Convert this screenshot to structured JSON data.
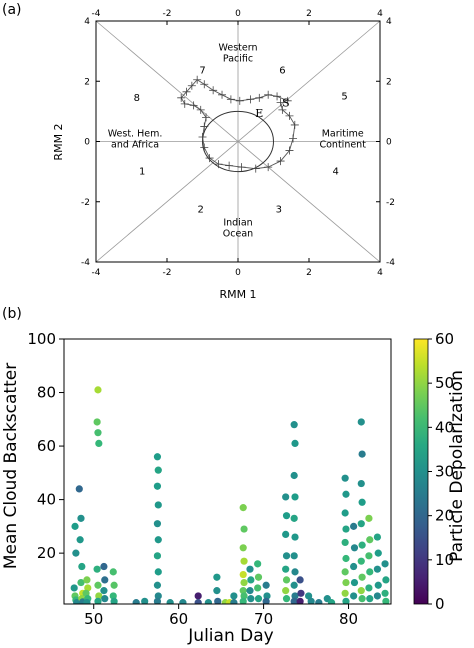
{
  "chart_data": [
    {
      "panel_label": "(a)",
      "type": "line",
      "xlabel": "RMM 1",
      "ylabel": "RMM 2",
      "xlim": [
        -4,
        4
      ],
      "ylim": [
        -4,
        4
      ],
      "xticks": [
        -4,
        -2,
        0,
        2,
        4
      ],
      "yticks": [
        -4,
        -2,
        0,
        2,
        4
      ],
      "phase_numbers": [
        {
          "label": "1",
          "x": -2.7,
          "y": -1.0
        },
        {
          "label": "2",
          "x": -1.05,
          "y": -2.25
        },
        {
          "label": "3",
          "x": 1.15,
          "y": -2.25
        },
        {
          "label": "4",
          "x": 2.75,
          "y": -1.0
        },
        {
          "label": "5",
          "x": 3.0,
          "y": 1.5
        },
        {
          "label": "6",
          "x": 1.25,
          "y": 2.35
        },
        {
          "label": "7",
          "x": -1.0,
          "y": 2.35
        },
        {
          "label": "8",
          "x": -2.85,
          "y": 1.45
        }
      ],
      "regions": [
        {
          "lines": [
            "Western",
            "Pacific"
          ],
          "x": 0.0,
          "y": 2.95
        },
        {
          "lines": [
            "West. Hem.",
            "and Africa"
          ],
          "x": -2.9,
          "y": 0.1
        },
        {
          "lines": [
            "Maritime",
            "Continent"
          ],
          "x": 2.95,
          "y": 0.1
        },
        {
          "lines": [
            "Indian",
            "Ocean"
          ],
          "x": 0.0,
          "y": -2.85
        }
      ],
      "markers": [
        {
          "label": "E",
          "x": 0.6,
          "y": 0.95
        },
        {
          "label": "S",
          "x": 1.35,
          "y": 1.3
        }
      ],
      "circle_radius": 1.0,
      "trajectory": [
        {
          "x": 1.4,
          "y": 1.35
        },
        {
          "x": 1.1,
          "y": 1.5
        },
        {
          "x": 0.85,
          "y": 1.55
        },
        {
          "x": 0.6,
          "y": 1.45
        },
        {
          "x": 0.35,
          "y": 1.4
        },
        {
          "x": 0.05,
          "y": 1.35
        },
        {
          "x": -0.2,
          "y": 1.4
        },
        {
          "x": -0.45,
          "y": 1.55
        },
        {
          "x": -0.7,
          "y": 1.7
        },
        {
          "x": -0.95,
          "y": 1.9
        },
        {
          "x": -1.15,
          "y": 2.05
        },
        {
          "x": -1.3,
          "y": 1.85
        },
        {
          "x": -1.45,
          "y": 1.65
        },
        {
          "x": -1.6,
          "y": 1.45
        },
        {
          "x": -1.5,
          "y": 1.25
        },
        {
          "x": -1.25,
          "y": 1.2
        },
        {
          "x": -1.05,
          "y": 1.05
        },
        {
          "x": -0.9,
          "y": 0.8
        },
        {
          "x": -0.95,
          "y": 0.5
        },
        {
          "x": -1.0,
          "y": 0.15
        },
        {
          "x": -0.95,
          "y": -0.2
        },
        {
          "x": -0.8,
          "y": -0.55
        },
        {
          "x": -0.55,
          "y": -0.75
        },
        {
          "x": -0.25,
          "y": -0.8
        },
        {
          "x": 0.1,
          "y": -0.85
        },
        {
          "x": 0.5,
          "y": -0.9
        },
        {
          "x": 0.85,
          "y": -0.85
        },
        {
          "x": 1.2,
          "y": -0.65
        },
        {
          "x": 1.45,
          "y": -0.3
        },
        {
          "x": 1.55,
          "y": 0.1
        },
        {
          "x": 1.6,
          "y": 0.55
        },
        {
          "x": 1.45,
          "y": 0.85
        },
        {
          "x": 1.25,
          "y": 1.05
        },
        {
          "x": 1.2,
          "y": 1.3
        }
      ]
    },
    {
      "panel_label": "(b)",
      "type": "scatter",
      "xlabel": "Julian Day",
      "ylabel": "Mean Cloud Backscatter",
      "xlim": [
        46.5,
        85
      ],
      "ylim": [
        1,
        100
      ],
      "xticks": [
        50,
        60,
        70,
        80
      ],
      "yticks": [
        20,
        40,
        60,
        80,
        100
      ],
      "colorbar": {
        "label": "Particle Depolarization",
        "min": 0,
        "max": 60,
        "ticks": [
          0,
          10,
          20,
          30,
          40,
          50,
          60
        ],
        "colormap": "viridis"
      },
      "points": [
        {
          "x": 47.8,
          "y": 30,
          "c": 33
        },
        {
          "x": 47.9,
          "y": 20,
          "c": 30
        },
        {
          "x": 47.7,
          "y": 7,
          "c": 32
        },
        {
          "x": 47.8,
          "y": 4,
          "c": 45
        },
        {
          "x": 47.9,
          "y": 2.5,
          "c": 40
        },
        {
          "x": 48.0,
          "y": 1.5,
          "c": 28
        },
        {
          "x": 48.3,
          "y": 44,
          "c": 20
        },
        {
          "x": 48.5,
          "y": 33,
          "c": 30
        },
        {
          "x": 48.4,
          "y": 25,
          "c": 32
        },
        {
          "x": 48.6,
          "y": 15,
          "c": 35
        },
        {
          "x": 48.5,
          "y": 9,
          "c": 42
        },
        {
          "x": 48.7,
          "y": 5,
          "c": 55
        },
        {
          "x": 48.6,
          "y": 3,
          "c": 50
        },
        {
          "x": 48.7,
          "y": 1.8,
          "c": 25
        },
        {
          "x": 49.2,
          "y": 10,
          "c": 48
        },
        {
          "x": 49.3,
          "y": 7,
          "c": 52
        },
        {
          "x": 49.1,
          "y": 5,
          "c": 45
        },
        {
          "x": 49.3,
          "y": 3,
          "c": 40
        },
        {
          "x": 49.2,
          "y": 1.5,
          "c": 30
        },
        {
          "x": 50.5,
          "y": 81,
          "c": 52
        },
        {
          "x": 50.4,
          "y": 69,
          "c": 45
        },
        {
          "x": 50.5,
          "y": 65,
          "c": 42
        },
        {
          "x": 50.6,
          "y": 61,
          "c": 40
        },
        {
          "x": 50.4,
          "y": 14,
          "c": 38
        },
        {
          "x": 50.5,
          "y": 8,
          "c": 45
        },
        {
          "x": 50.6,
          "y": 4,
          "c": 50
        },
        {
          "x": 50.5,
          "y": 2,
          "c": 35
        },
        {
          "x": 51.2,
          "y": 15,
          "c": 20
        },
        {
          "x": 51.3,
          "y": 10,
          "c": 22
        },
        {
          "x": 51.2,
          "y": 6,
          "c": 30
        },
        {
          "x": 51.3,
          "y": 3,
          "c": 28
        },
        {
          "x": 52.3,
          "y": 13,
          "c": 42
        },
        {
          "x": 52.4,
          "y": 8,
          "c": 44
        },
        {
          "x": 52.3,
          "y": 4,
          "c": 40
        },
        {
          "x": 52.4,
          "y": 2,
          "c": 35
        },
        {
          "x": 55.0,
          "y": 1.5,
          "c": 25
        },
        {
          "x": 56.0,
          "y": 2,
          "c": 30
        },
        {
          "x": 57.5,
          "y": 56,
          "c": 33
        },
        {
          "x": 57.6,
          "y": 51,
          "c": 35
        },
        {
          "x": 57.5,
          "y": 45,
          "c": 33
        },
        {
          "x": 57.6,
          "y": 38,
          "c": 32
        },
        {
          "x": 57.5,
          "y": 31,
          "c": 30
        },
        {
          "x": 57.6,
          "y": 25,
          "c": 32
        },
        {
          "x": 57.5,
          "y": 19,
          "c": 35
        },
        {
          "x": 57.6,
          "y": 13,
          "c": 33
        },
        {
          "x": 57.5,
          "y": 8,
          "c": 30
        },
        {
          "x": 57.6,
          "y": 4,
          "c": 28
        },
        {
          "x": 57.5,
          "y": 2,
          "c": 25
        },
        {
          "x": 59.0,
          "y": 1.5,
          "c": 30
        },
        {
          "x": 60.5,
          "y": 1.5,
          "c": 28
        },
        {
          "x": 62.3,
          "y": 4,
          "c": 5
        },
        {
          "x": 62.3,
          "y": 1.5,
          "c": 15
        },
        {
          "x": 63.5,
          "y": 1.5,
          "c": 30
        },
        {
          "x": 64.5,
          "y": 6,
          "c": 30
        },
        {
          "x": 64.5,
          "y": 11,
          "c": 32
        },
        {
          "x": 64.6,
          "y": 2,
          "c": 20
        },
        {
          "x": 65.5,
          "y": 1.5,
          "c": 50
        },
        {
          "x": 66.0,
          "y": 1.5,
          "c": 55
        },
        {
          "x": 66.5,
          "y": 4,
          "c": 30
        },
        {
          "x": 66.5,
          "y": 1.5,
          "c": 25
        },
        {
          "x": 67.6,
          "y": 37,
          "c": 48
        },
        {
          "x": 67.7,
          "y": 29,
          "c": 45
        },
        {
          "x": 67.6,
          "y": 22,
          "c": 48
        },
        {
          "x": 67.7,
          "y": 17,
          "c": 52
        },
        {
          "x": 67.6,
          "y": 12,
          "c": 55
        },
        {
          "x": 67.7,
          "y": 9,
          "c": 50
        },
        {
          "x": 67.6,
          "y": 6,
          "c": 45
        },
        {
          "x": 67.7,
          "y": 4,
          "c": 42
        },
        {
          "x": 67.6,
          "y": 2,
          "c": 40
        },
        {
          "x": 68.4,
          "y": 14,
          "c": 30
        },
        {
          "x": 68.5,
          "y": 10,
          "c": 35
        },
        {
          "x": 68.4,
          "y": 6,
          "c": 28
        },
        {
          "x": 68.5,
          "y": 3,
          "c": 30
        },
        {
          "x": 69.3,
          "y": 16,
          "c": 40
        },
        {
          "x": 69.4,
          "y": 11,
          "c": 45
        },
        {
          "x": 69.3,
          "y": 7,
          "c": 42
        },
        {
          "x": 69.4,
          "y": 3,
          "c": 35
        },
        {
          "x": 70.3,
          "y": 8,
          "c": 25
        },
        {
          "x": 70.4,
          "y": 4,
          "c": 30
        },
        {
          "x": 70.3,
          "y": 2,
          "c": 20
        },
        {
          "x": 72.6,
          "y": 41,
          "c": 30
        },
        {
          "x": 72.7,
          "y": 34,
          "c": 33
        },
        {
          "x": 72.6,
          "y": 27,
          "c": 32
        },
        {
          "x": 72.7,
          "y": 19,
          "c": 30
        },
        {
          "x": 72.6,
          "y": 14,
          "c": 35
        },
        {
          "x": 72.7,
          "y": 10,
          "c": 45
        },
        {
          "x": 72.6,
          "y": 6,
          "c": 50
        },
        {
          "x": 72.7,
          "y": 3,
          "c": 40
        },
        {
          "x": 73.6,
          "y": 68,
          "c": 30
        },
        {
          "x": 73.7,
          "y": 61,
          "c": 32
        },
        {
          "x": 73.6,
          "y": 49,
          "c": 30
        },
        {
          "x": 73.7,
          "y": 41,
          "c": 33
        },
        {
          "x": 73.6,
          "y": 33,
          "c": 35
        },
        {
          "x": 73.7,
          "y": 26,
          "c": 32
        },
        {
          "x": 73.6,
          "y": 19,
          "c": 30
        },
        {
          "x": 73.7,
          "y": 13,
          "c": 28
        },
        {
          "x": 73.6,
          "y": 8,
          "c": 30
        },
        {
          "x": 73.7,
          "y": 4,
          "c": 25
        },
        {
          "x": 73.6,
          "y": 2,
          "c": 20
        },
        {
          "x": 74.3,
          "y": 10,
          "c": 15
        },
        {
          "x": 74.4,
          "y": 5,
          "c": 10
        },
        {
          "x": 74.3,
          "y": 2,
          "c": 5
        },
        {
          "x": 75.3,
          "y": 4,
          "c": 30
        },
        {
          "x": 75.6,
          "y": 2,
          "c": 28
        },
        {
          "x": 76.5,
          "y": 1.5,
          "c": 25
        },
        {
          "x": 77.5,
          "y": 3,
          "c": 30
        },
        {
          "x": 78.0,
          "y": 1.5,
          "c": 35
        },
        {
          "x": 79.6,
          "y": 48,
          "c": 30
        },
        {
          "x": 79.7,
          "y": 42,
          "c": 32
        },
        {
          "x": 79.6,
          "y": 35,
          "c": 33
        },
        {
          "x": 79.7,
          "y": 29,
          "c": 35
        },
        {
          "x": 79.6,
          "y": 24,
          "c": 38
        },
        {
          "x": 79.7,
          "y": 18,
          "c": 40
        },
        {
          "x": 79.6,
          "y": 13,
          "c": 45
        },
        {
          "x": 79.7,
          "y": 9,
          "c": 48
        },
        {
          "x": 79.6,
          "y": 5,
          "c": 50
        },
        {
          "x": 79.7,
          "y": 2,
          "c": 35
        },
        {
          "x": 80.6,
          "y": 30,
          "c": 25
        },
        {
          "x": 80.7,
          "y": 22,
          "c": 28
        },
        {
          "x": 80.6,
          "y": 15,
          "c": 30
        },
        {
          "x": 80.7,
          "y": 9,
          "c": 32
        },
        {
          "x": 80.6,
          "y": 4,
          "c": 30
        },
        {
          "x": 81.5,
          "y": 69,
          "c": 30
        },
        {
          "x": 81.6,
          "y": 57,
          "c": 25
        },
        {
          "x": 81.5,
          "y": 46,
          "c": 30
        },
        {
          "x": 81.6,
          "y": 39,
          "c": 33
        },
        {
          "x": 81.5,
          "y": 31,
          "c": 35
        },
        {
          "x": 81.6,
          "y": 23,
          "c": 38
        },
        {
          "x": 81.5,
          "y": 17,
          "c": 40
        },
        {
          "x": 81.6,
          "y": 11,
          "c": 45
        },
        {
          "x": 81.5,
          "y": 6,
          "c": 50
        },
        {
          "x": 81.6,
          "y": 3,
          "c": 42
        },
        {
          "x": 82.4,
          "y": 33,
          "c": 48
        },
        {
          "x": 82.5,
          "y": 25,
          "c": 45
        },
        {
          "x": 82.4,
          "y": 19,
          "c": 42
        },
        {
          "x": 82.5,
          "y": 13,
          "c": 40
        },
        {
          "x": 82.4,
          "y": 7,
          "c": 38
        },
        {
          "x": 82.5,
          "y": 3,
          "c": 35
        },
        {
          "x": 83.4,
          "y": 26,
          "c": 35
        },
        {
          "x": 83.5,
          "y": 20,
          "c": 33
        },
        {
          "x": 83.4,
          "y": 14,
          "c": 30
        },
        {
          "x": 83.5,
          "y": 8,
          "c": 32
        },
        {
          "x": 83.4,
          "y": 4,
          "c": 28
        },
        {
          "x": 84.3,
          "y": 16,
          "c": 30
        },
        {
          "x": 84.4,
          "y": 10,
          "c": 35
        },
        {
          "x": 84.3,
          "y": 5,
          "c": 38
        },
        {
          "x": 84.4,
          "y": 2,
          "c": 40
        }
      ]
    }
  ]
}
